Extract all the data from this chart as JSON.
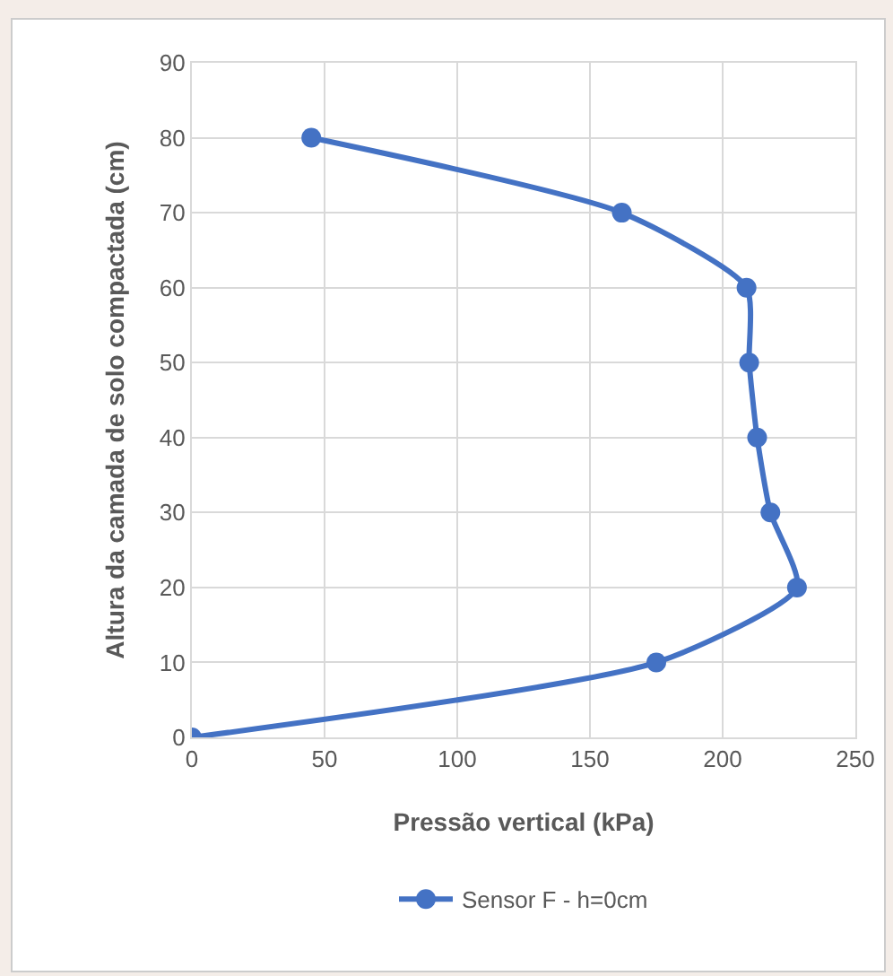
{
  "chart_data": {
    "type": "line",
    "xlabel": "Pressão vertical (kPa)",
    "ylabel": "Altura da camada de solo compactada (cm)",
    "series": [
      {
        "name": "Sensor F - h=0cm",
        "color": "#4472c4",
        "x": [
          0,
          175,
          228,
          218,
          213,
          210,
          209,
          162,
          45
        ],
        "values": [
          0,
          10,
          20,
          30,
          40,
          50,
          60,
          70,
          80
        ]
      }
    ],
    "xlim": [
      0,
      250
    ],
    "xticks": [
      0,
      50,
      100,
      150,
      200,
      250
    ],
    "ylim": [
      0,
      90
    ],
    "yticks": [
      0,
      10,
      20,
      30,
      40,
      50,
      60,
      70,
      80,
      90
    ],
    "grid": true,
    "legend": "bottom",
    "marker": "circle",
    "line_style": "solid"
  }
}
